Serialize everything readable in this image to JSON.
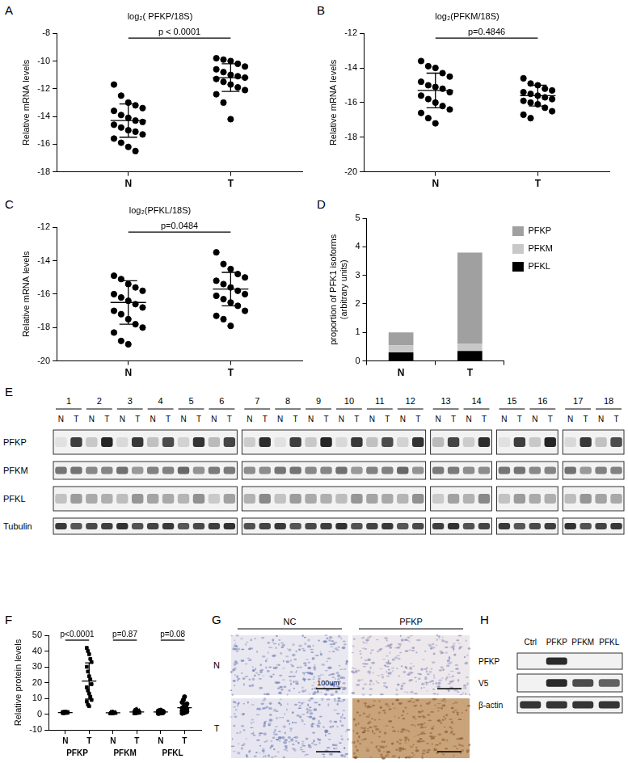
{
  "chart_data": [
    {
      "panel": "A",
      "type": "scatter",
      "title": "log₂( PFKP/18S)",
      "ylabel": "Relative mRNA levels",
      "categories": [
        "N",
        "T"
      ],
      "values": [
        [
          -11.7,
          -12.5,
          -13.0,
          -13.2,
          -13.4,
          -13.6,
          -13.9,
          -14.1,
          -14.3,
          -14.4,
          -14.6,
          -14.8,
          -15.0,
          -15.1,
          -15.3,
          -15.6,
          -15.9,
          -16.2,
          -16.5
        ],
        [
          -9.8,
          -9.9,
          -10.0,
          -10.2,
          -10.4,
          -10.6,
          -10.8,
          -11.0,
          -11.1,
          -11.2,
          -11.3,
          -11.5,
          -11.7,
          -11.9,
          -12.1,
          -12.4,
          -13.0,
          -14.2
        ]
      ],
      "mean": [
        -14.3,
        -11.2
      ],
      "sd": [
        1.2,
        1.0
      ],
      "annotations": [
        "p < 0.0001"
      ],
      "marker": "circle",
      "ylim": [
        -18,
        -8
      ],
      "yticks": [
        -18,
        -16,
        -14,
        -12,
        -10,
        -8
      ],
      "grid": false
    },
    {
      "panel": "B",
      "type": "scatter",
      "title": "log₂(PFKM/18S)",
      "ylabel": "Relative mRNA levels",
      "categories": [
        "N",
        "T"
      ],
      "values": [
        [
          -13.6,
          -13.9,
          -14.0,
          -14.3,
          -14.5,
          -14.8,
          -15.0,
          -15.1,
          -15.2,
          -15.4,
          -15.6,
          -15.8,
          -16.0,
          -16.2,
          -16.4,
          -16.6,
          -16.9,
          -17.2
        ],
        [
          -14.6,
          -14.9,
          -15.0,
          -15.2,
          -15.3,
          -15.4,
          -15.5,
          -15.6,
          -15.7,
          -15.8,
          -15.9,
          -16.0,
          -16.1,
          -16.3,
          -16.5,
          -16.7,
          -16.9
        ]
      ],
      "mean": [
        -15.3,
        -15.6
      ],
      "sd": [
        1.0,
        0.6
      ],
      "annotations": [
        "p=0.4846"
      ],
      "marker": "circle",
      "ylim": [
        -20,
        -12
      ],
      "yticks": [
        -20,
        -18,
        -16,
        -14,
        -12
      ],
      "grid": false
    },
    {
      "panel": "C",
      "type": "scatter",
      "title": "log₂(PFKL/18S)",
      "ylabel": "Relative mRNA levels",
      "categories": [
        "N",
        "T"
      ],
      "values": [
        [
          -14.9,
          -15.1,
          -15.4,
          -15.6,
          -15.8,
          -16.0,
          -16.2,
          -16.4,
          -16.6,
          -16.8,
          -17.0,
          -17.2,
          -17.5,
          -17.8,
          -18.0,
          -18.3,
          -18.8,
          -19.0
        ],
        [
          -13.5,
          -14.2,
          -14.5,
          -14.8,
          -15.0,
          -15.2,
          -15.4,
          -15.6,
          -15.8,
          -16.0,
          -16.1,
          -16.3,
          -16.5,
          -16.7,
          -17.0,
          -17.3,
          -17.5,
          -17.9
        ]
      ],
      "mean": [
        -16.5,
        -15.7
      ],
      "sd": [
        1.3,
        1.0
      ],
      "annotations": [
        "p=0.0484"
      ],
      "marker": "circle",
      "ylim": [
        -20,
        -12
      ],
      "yticks": [
        -20,
        -18,
        -16,
        -14,
        -12
      ],
      "grid": false
    },
    {
      "panel": "D",
      "type": "bar",
      "ylabel": "proportion of PFK1 isoforms\n(arbitrary units)",
      "categories": [
        "N",
        "T"
      ],
      "series": [
        {
          "name": "PFKL",
          "color": "#000000",
          "values": [
            0.3,
            0.35
          ]
        },
        {
          "name": "PFKM",
          "color": "#c8c8c8",
          "values": [
            0.25,
            0.25
          ]
        },
        {
          "name": "PFKP",
          "color": "#a0a0a0",
          "values": [
            0.45,
            3.2
          ]
        }
      ],
      "stacked": true,
      "legend": "upper right",
      "ylim": [
        0,
        5
      ],
      "yticks": [
        0,
        1,
        2,
        3,
        4,
        5
      ],
      "grid": false
    },
    {
      "panel": "F",
      "type": "scatter",
      "ylabel": "Relative protein levels",
      "categories": [
        "N",
        "T",
        "N",
        "T",
        "N",
        "T"
      ],
      "series": [
        {
          "name": "PFKP",
          "marker": "rect",
          "values": [
            [
              0.6,
              0.7,
              0.8,
              0.8,
              0.9,
              0.9,
              1.0,
              1.0,
              1.0,
              1.0,
              1.1,
              1.1,
              1.2,
              1.2,
              1.3,
              1.3,
              1.4,
              1.5
            ],
            [
              42,
              40,
              38,
              35,
              33,
              30,
              27,
              24,
              22,
              19,
              17,
              15,
              13,
              11,
              9,
              8,
              6,
              5
            ]
          ],
          "mean": [
            1.0,
            21.0
          ],
          "sd": [
            0.3,
            11.5
          ]
        },
        {
          "name": "PFKM",
          "marker": "triangle",
          "values": [
            [
              0.2,
              0.3,
              0.4,
              0.5,
              0.5,
              0.6,
              0.6,
              0.7,
              0.7,
              0.8,
              0.8,
              0.9,
              1.0,
              1.0,
              1.1,
              1.2,
              1.3,
              1.5
            ],
            [
              0.3,
              0.4,
              0.5,
              0.6,
              0.7,
              0.8,
              0.9,
              1.0,
              1.1,
              1.2,
              1.3,
              1.5,
              1.7,
              1.9,
              2.2,
              2.5,
              2.8,
              3.2
            ]
          ],
          "mean": [
            0.8,
            1.3
          ],
          "sd": [
            0.35,
            0.8
          ]
        },
        {
          "name": "PFKL",
          "marker": "circle",
          "values": [
            [
              0.4,
              0.6,
              0.7,
              0.8,
              0.9,
              1.0,
              1.0,
              1.1,
              1.2,
              1.2,
              1.3,
              1.4,
              1.5,
              1.6,
              1.8,
              2.0,
              2.2,
              2.5
            ],
            [
              0.5,
              0.8,
              1.0,
              1.3,
              1.6,
              2.0,
              2.3,
              2.6,
              3.0,
              3.4,
              3.8,
              4.3,
              5.0,
              5.8,
              6.5,
              7.5,
              9.0,
              11.0
            ]
          ],
          "mean": [
            1.3,
            4.0
          ],
          "sd": [
            0.5,
            3.0
          ]
        }
      ],
      "annotations": [
        "p<0.0001",
        "p=0.87",
        "p=0.08"
      ],
      "ylim": [
        -10,
        50
      ],
      "yticks": [
        -10,
        0,
        10,
        20,
        30,
        40,
        50
      ],
      "grid": false
    }
  ],
  "blot_E": {
    "panel": "E",
    "lane_groups": [
      [
        "1",
        "2",
        "3",
        "4",
        "5",
        "6"
      ],
      [
        "7",
        "8",
        "9",
        "10",
        "11",
        "12"
      ],
      [
        "13",
        "14"
      ],
      [
        "15",
        "16"
      ],
      [
        "17",
        "18"
      ]
    ],
    "lane_labels": [
      "N",
      "T"
    ],
    "rows": [
      "PFKP",
      "PFKM",
      "PFKL",
      "Tubulin"
    ]
  },
  "ihc_G": {
    "panel": "G",
    "columns": [
      "NC",
      "PFKP"
    ],
    "rows": [
      "N",
      "T"
    ],
    "scale_bar": "100um"
  },
  "blot_H": {
    "panel": "H",
    "lanes": [
      "Ctrl",
      "PFKP",
      "PFKM",
      "PFKL"
    ],
    "rows": [
      "PFKP",
      "V5",
      "β-actin"
    ]
  }
}
